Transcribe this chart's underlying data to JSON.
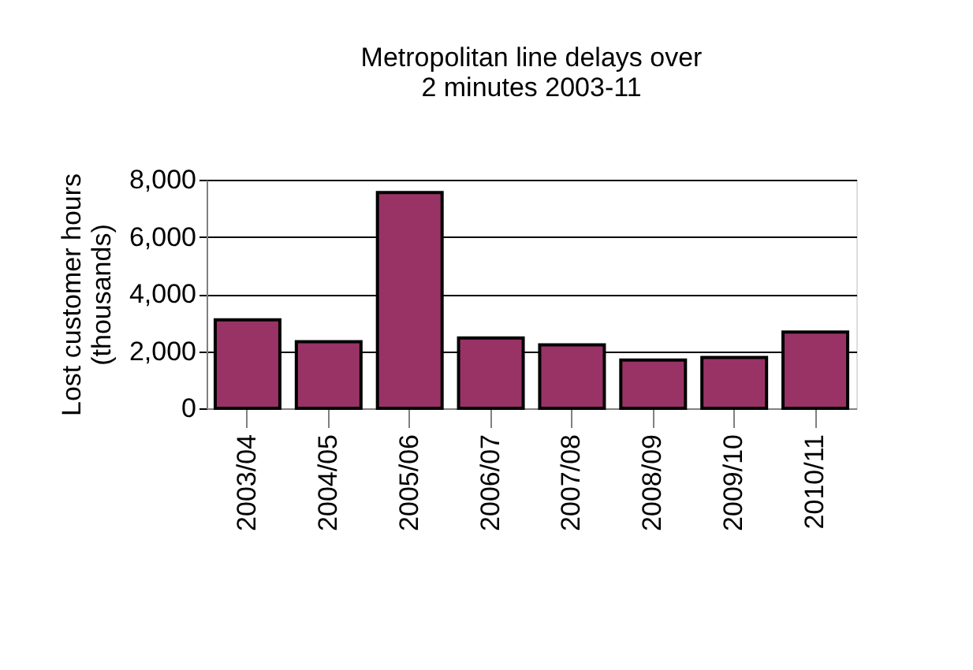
{
  "chart_data": {
    "type": "bar",
    "title": "Metropolitan line delays over 2 minutes 2003-11",
    "ylabel": "Lost customer hours (thousands)",
    "categories": [
      "2003/04",
      "2004/05",
      "2005/06",
      "2006/07",
      "2007/08",
      "2008/09",
      "2009/10",
      "2010/11"
    ],
    "values": [
      3100,
      2330,
      7550,
      2460,
      2220,
      1690,
      1780,
      2670
    ],
    "color": "#993366",
    "ylim": [
      0,
      8000
    ],
    "yticks": [
      0,
      {
        "value": 2000,
        "label": "2,000"
      },
      {
        "value": 4000,
        "label": "4,000"
      },
      {
        "value": 6000,
        "label": "6,000"
      },
      {
        "value": 8000,
        "label": "8,000"
      }
    ],
    "grid": "y"
  }
}
